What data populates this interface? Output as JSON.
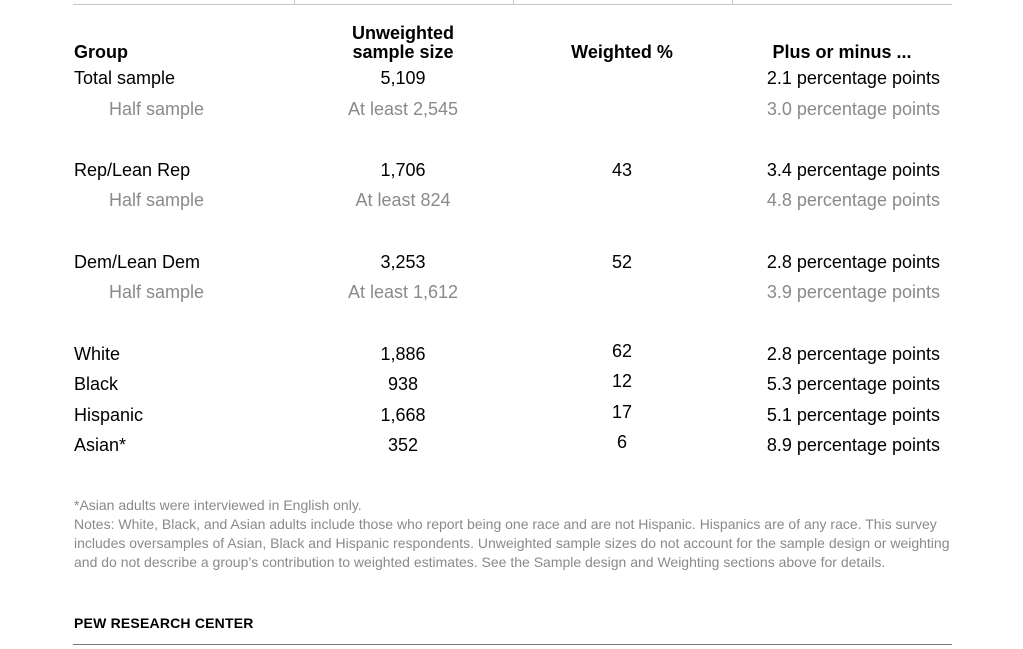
{
  "headers": {
    "group": "Group",
    "size_line1": "Unweighted",
    "size_line2": "sample size",
    "weighted": "Weighted %",
    "plus_minus": "Plus or minus ..."
  },
  "rows": [
    {
      "group": "Total sample",
      "size": "5,109",
      "weighted": "",
      "plus_minus": "2.1 percentage points"
    },
    {
      "group": "Half sample",
      "size": "At least 2,545",
      "weighted": "",
      "plus_minus": "3.0 percentage points"
    },
    {
      "group": "Rep/Lean Rep",
      "size": "1,706",
      "weighted": "43",
      "plus_minus": "3.4 percentage points"
    },
    {
      "group": "Half sample",
      "size": "At least 824",
      "weighted": "",
      "plus_minus": "4.8 percentage points"
    },
    {
      "group": "Dem/Lean Dem",
      "size": "3,253",
      "weighted": "52",
      "plus_minus": "2.8 percentage points"
    },
    {
      "group": "Half sample",
      "size": "At least 1,612",
      "weighted": "",
      "plus_minus": "3.9 percentage points"
    },
    {
      "group": "White",
      "size": "1,886",
      "weighted": "62",
      "plus_minus": "2.8 percentage points"
    },
    {
      "group": "Black",
      "size": "938",
      "weighted": "12",
      "plus_minus": "5.3 percentage points"
    },
    {
      "group": "Hispanic",
      "size": "1,668",
      "weighted": "17",
      "plus_minus": "5.1 percentage points"
    },
    {
      "group": "Asian*",
      "size": "352",
      "weighted": "6",
      "plus_minus": "8.9 percentage points"
    }
  ],
  "footnote": "*Asian adults were interviewed in English only.",
  "notes": "Notes: White, Black, and Asian adults include those who report being one race and are not Hispanic. Hispanics are of any race. This survey includes oversamples of Asian, Black and Hispanic respondents. Unweighted sample sizes do not account for the sample design or weighting and do not describe a group’s contribution to weighted estimates. See the Sample design and Weighting sections above for details.",
  "source": "PEW RESEARCH CENTER",
  "colors": {
    "text": "#000000",
    "muted": "#8a8a8a",
    "rule": "#c8c8c8"
  }
}
